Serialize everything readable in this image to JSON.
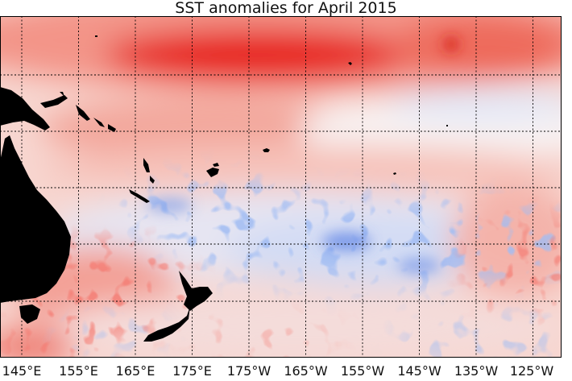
{
  "title": "SST anomalies for April 2015",
  "map": {
    "projection": "equirectangular",
    "region": "Western and central Pacific Ocean",
    "gridlines": "dotted",
    "lon_ticks": [
      "145°E",
      "155°E",
      "165°E",
      "175°E",
      "175°W",
      "165°W",
      "155°W",
      "145°W",
      "135°W",
      "125°W"
    ],
    "colors": {
      "warm_strong": "#e8231e",
      "warm": "#f08478",
      "warm_light": "#f9cdc6",
      "neutral": "#f6f4f4",
      "cool_light": "#c9d6f3",
      "cool": "#5b82e6",
      "land": "#000000",
      "grid": "#000000"
    }
  }
}
